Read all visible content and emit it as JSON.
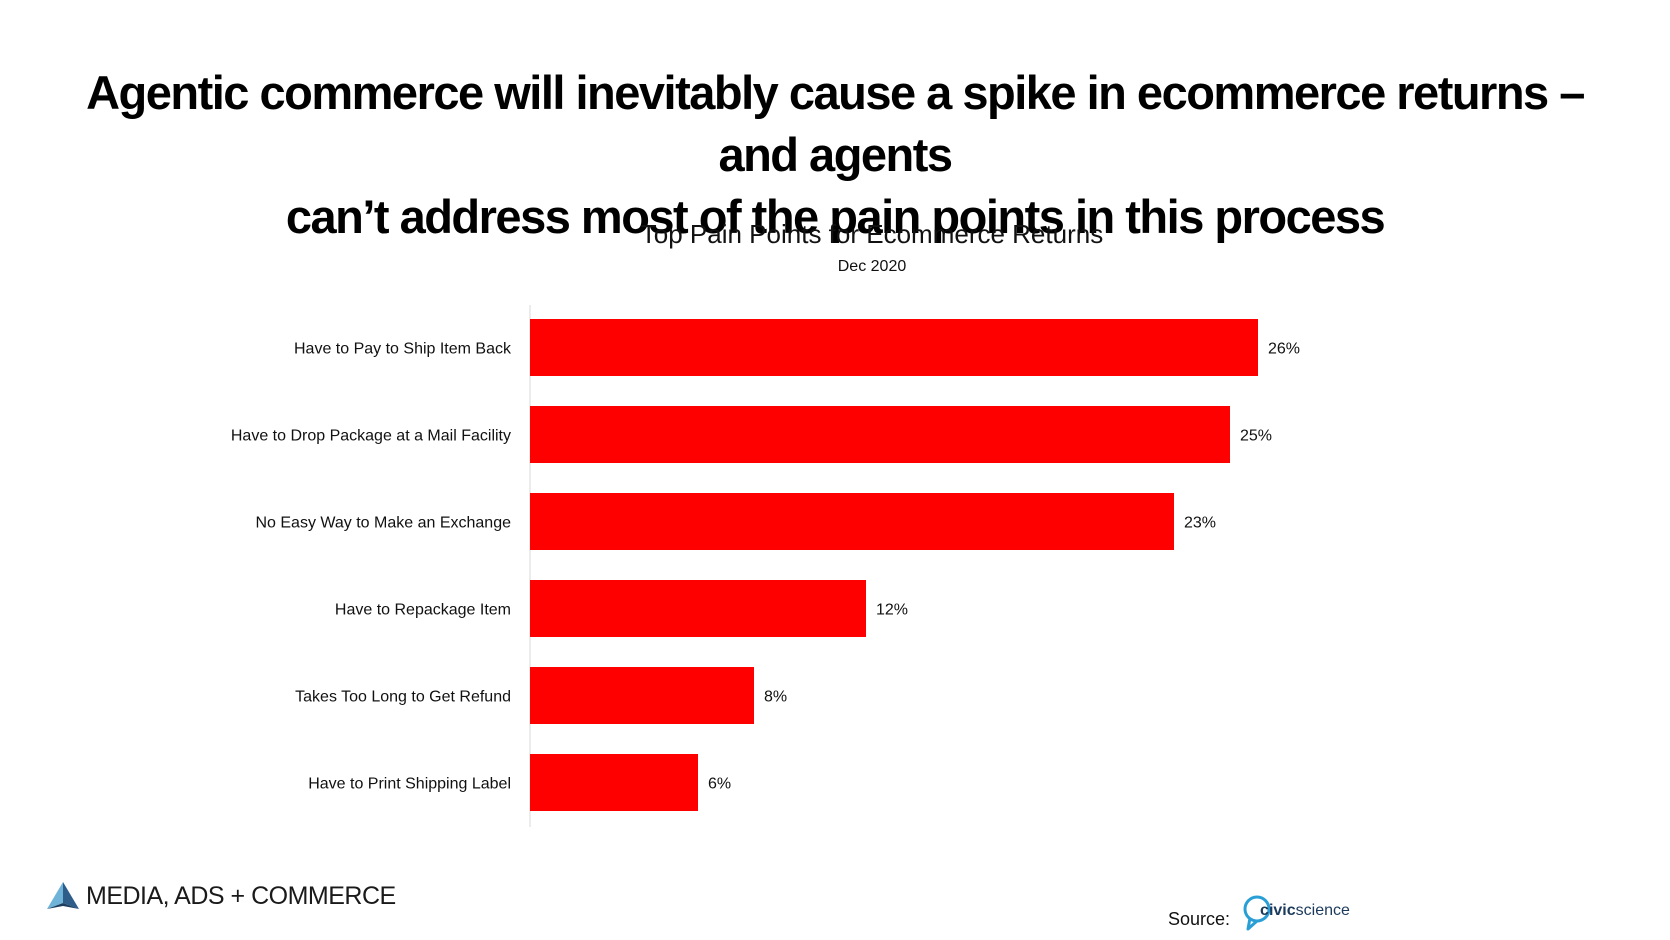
{
  "headline": {
    "line1": "Agentic commerce will inevitably cause a spike in ecommerce returns – and agents",
    "line2": "can’t address most of the pain points in this process"
  },
  "chart_data": {
    "type": "bar",
    "orientation": "horizontal",
    "title": "Top Pain Points for Ecommerce Returns",
    "subtitle": "Dec 2020",
    "categories": [
      "Have to Pay to Ship Item Back",
      "Have to Drop Package at a Mail Facility",
      "No Easy Way to Make an Exchange",
      "Have to Repackage Item",
      "Takes Too Long to Get Refund",
      "Have to Print Shipping Label"
    ],
    "values": [
      26,
      25,
      23,
      12,
      8,
      6
    ],
    "value_labels": [
      "26%",
      "25%",
      "23%",
      "12%",
      "8%",
      "6%"
    ],
    "xlim": [
      0,
      30
    ],
    "grid": false,
    "bar_color": "#ff0000"
  },
  "footer": {
    "brand": "MEDIA, ADS + COMMERCE",
    "source_label": "Source:",
    "source_logo_bold": "civic",
    "source_logo_light": "science"
  }
}
